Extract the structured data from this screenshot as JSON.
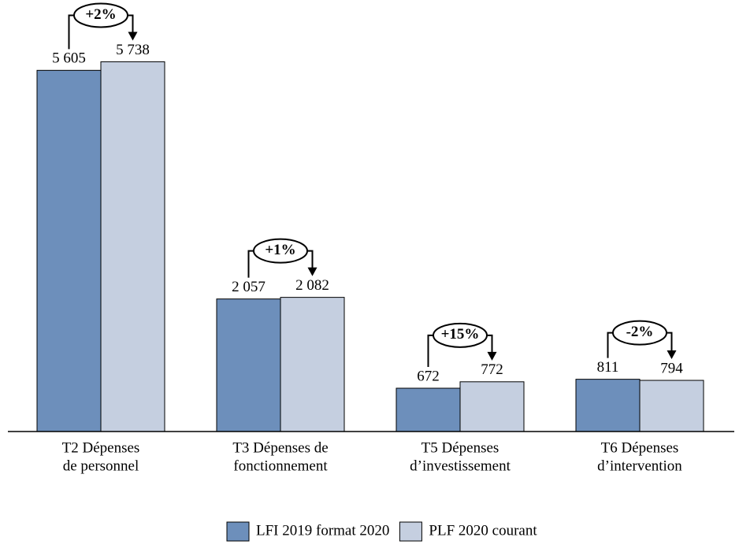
{
  "chart_data": {
    "type": "bar",
    "categories": [
      [
        "T2 Dépenses",
        "de personnel"
      ],
      [
        "T3 Dépenses de",
        "fonctionnement"
      ],
      [
        "T5 Dépenses",
        "d’investissement"
      ],
      [
        "T6 Dépenses",
        "d’intervention"
      ]
    ],
    "series": [
      {
        "name": "LFI 2019 format 2020",
        "color": "#6d8fbb",
        "values": [
          5605,
          2057,
          672,
          811
        ],
        "value_labels": [
          "5 605",
          "2 057",
          "672",
          "811"
        ]
      },
      {
        "name": "PLF 2020 courant",
        "color": "#c5cfe0",
        "values": [
          5738,
          2082,
          772,
          794
        ],
        "value_labels": [
          "5 738",
          "2 082",
          "772",
          "794"
        ]
      }
    ],
    "annotations": [
      "+2%",
      "+1%",
      "+15%",
      "-2%"
    ],
    "ylim": [
      0,
      6000
    ],
    "legend": "bottom"
  }
}
